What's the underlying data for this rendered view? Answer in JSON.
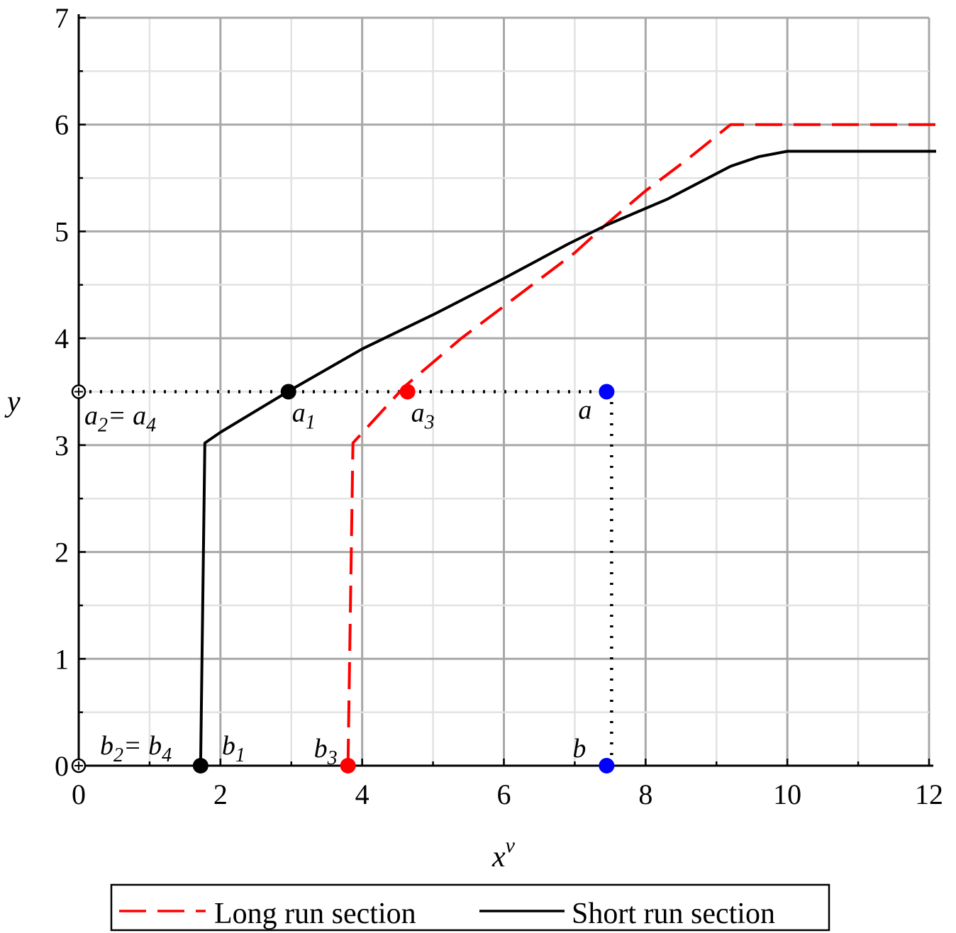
{
  "chart_data": {
    "type": "line",
    "xlabel": "x",
    "xlabel_superscript": "v",
    "ylabel": "y",
    "xlim": [
      0,
      12
    ],
    "ylim": [
      0,
      7
    ],
    "x_ticks": [
      0,
      2,
      4,
      6,
      8,
      10,
      12
    ],
    "y_ticks": [
      0,
      1,
      2,
      3,
      4,
      5,
      6,
      7
    ],
    "grid": true,
    "legend_position": "bottom",
    "series": [
      {
        "name": "Long run section",
        "color": "#ff0000",
        "style": "dashed",
        "x": [
          3.8,
          3.87,
          4.6,
          5.4,
          6.2,
          7.0,
          7.45,
          8.0,
          8.6,
          9.2,
          12.1
        ],
        "y": [
          0,
          3.02,
          3.55,
          4.0,
          4.4,
          4.8,
          5.07,
          5.38,
          5.68,
          6.0,
          6.0
        ]
      },
      {
        "name": "Short run section",
        "color": "#000000",
        "style": "solid",
        "x": [
          1.72,
          1.78,
          2.0,
          3.0,
          4.0,
          5.0,
          6.0,
          6.9,
          7.45,
          8.3,
          9.2,
          9.6,
          10.0,
          12.1
        ],
        "y": [
          0,
          3.02,
          3.12,
          3.52,
          3.9,
          4.22,
          4.56,
          4.88,
          5.06,
          5.3,
          5.61,
          5.7,
          5.75,
          5.75
        ]
      }
    ],
    "guides": [
      {
        "x": [
          0,
          7.45
        ],
        "y": [
          3.5,
          3.5
        ],
        "color": "#000000",
        "style": "dotted"
      },
      {
        "x": [
          7.52,
          7.52
        ],
        "y": [
          0,
          3.5
        ],
        "color": "#000000",
        "style": "dotted"
      }
    ],
    "points": [
      {
        "x": 0,
        "y": 3.5,
        "color": "#000000",
        "hollow": true,
        "label": "a",
        "sub": "2",
        "suffix": "= a",
        "suffix_sub": "4",
        "anchor": "below-right"
      },
      {
        "x": 2.96,
        "y": 3.5,
        "color": "#000000",
        "hollow": false,
        "label": "a",
        "sub": "1",
        "anchor": "below"
      },
      {
        "x": 4.64,
        "y": 3.5,
        "color": "#ff0000",
        "hollow": false,
        "label": "a",
        "sub": "3",
        "anchor": "below"
      },
      {
        "x": 7.45,
        "y": 3.5,
        "color": "#0000ff",
        "hollow": false,
        "label": "a",
        "sub": "",
        "anchor": "below-left"
      },
      {
        "x": 0,
        "y": 0,
        "color": "#000000",
        "hollow": true,
        "label": "b",
        "sub": "2",
        "suffix": "= b",
        "suffix_sub": "4",
        "anchor": "above-right"
      },
      {
        "x": 1.72,
        "y": 0,
        "color": "#000000",
        "hollow": false,
        "label": "b",
        "sub": "1",
        "anchor": "above-right"
      },
      {
        "x": 3.8,
        "y": 0,
        "color": "#ff0000",
        "hollow": false,
        "label": "b",
        "sub": "3",
        "anchor": "above-left"
      },
      {
        "x": 7.45,
        "y": 0,
        "color": "#0000ff",
        "hollow": false,
        "label": "b",
        "sub": "",
        "anchor": "above-left"
      }
    ]
  }
}
